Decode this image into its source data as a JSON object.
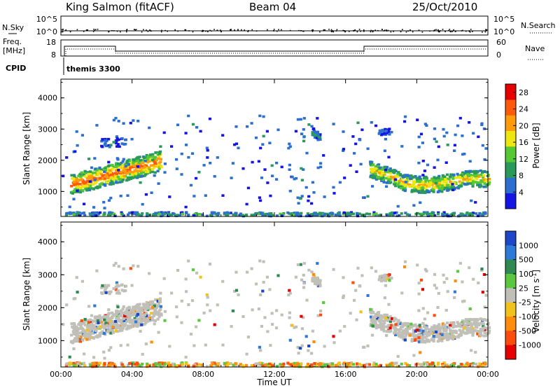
{
  "header": {
    "title": "King Salmon (fitACF)",
    "beam": "Beam 04",
    "date": "25/Oct/2010"
  },
  "aux_panels": {
    "nsky_label": "N.Sky",
    "nsearch_label": "N.Search",
    "noise_ticks": [
      "10^5",
      "10^0"
    ],
    "freq_label": "Freq.",
    "freq_unit": "[MHz]",
    "freq_ticks": [
      "18",
      "8"
    ],
    "nave_label": "Nave",
    "nave_ticks": [
      "60",
      "0"
    ],
    "cpid_label": "CPID",
    "cpid_value": "themis 3300"
  },
  "colors": {
    "power": [
      "#1414e6",
      "#2d6fd0",
      "#2a9a5a",
      "#55c833",
      "#f0e60f",
      "#ff9c0c",
      "#ff5a0a",
      "#e60000"
    ],
    "velocity": [
      "#1e46c8",
      "#2f7ad8",
      "#2e8a50",
      "#5ac83c",
      "#c0c0b8",
      "#f2c21c",
      "#ff8c0c",
      "#ff4c0c",
      "#e60000"
    ]
  },
  "chart_data": [
    {
      "type": "heatmap",
      "name": "power",
      "xlabel": "",
      "ylabel": "Slant Range [km]",
      "x_ticks": [
        "00:00",
        "04:00",
        "08:00",
        "12:00",
        "16:00",
        "20:00",
        "00:00"
      ],
      "y_ticks": [
        1000,
        2000,
        3000,
        4000
      ],
      "ylim": [
        200,
        4600
      ],
      "xlim_hours": [
        0,
        24
      ],
      "colorbar_label": "Power [dB]",
      "colorbar_ticks": [
        4,
        8,
        12,
        16,
        20,
        24,
        28
      ],
      "colorbar_range": [
        0,
        30
      ],
      "echo_regions": [
        {
          "time_hours": [
            0.5,
            5.5
          ],
          "range_km": [
            1100,
            2200
          ],
          "peak_db": 26
        },
        {
          "time_hours": [
            17.5,
            24.0
          ],
          "range_km": [
            1050,
            1900
          ],
          "peak_db": 24
        },
        {
          "time_hours": [
            0.0,
            24.0
          ],
          "range_km": [
            250,
            400
          ],
          "peak_db": 12
        },
        {
          "time_hours": [
            14.0,
            14.5
          ],
          "range_km": [
            2600,
            3400
          ],
          "peak_db": 8
        }
      ]
    },
    {
      "type": "heatmap",
      "name": "velocity",
      "xlabel": "Time UT",
      "ylabel": "Slant Range [km]",
      "x_ticks": [
        "00:00",
        "04:00",
        "08:00",
        "12:00",
        "16:00",
        "20:00",
        "00:00"
      ],
      "y_ticks": [
        1000,
        2000,
        3000,
        4000
      ],
      "ylim": [
        200,
        4600
      ],
      "xlim_hours": [
        0,
        24
      ],
      "colorbar_label": "Velocity [m s-1]",
      "colorbar_title": "Velocity",
      "colorbar_unit": "[m s",
      "colorbar_exp": "-1",
      "colorbar_unit_end": "]",
      "colorbar_ticks": [
        "1000",
        "500",
        "100",
        "25",
        "-25",
        "-100",
        "-500",
        "-1000"
      ],
      "colorbar_range": [
        -1000,
        1000
      ]
    }
  ]
}
